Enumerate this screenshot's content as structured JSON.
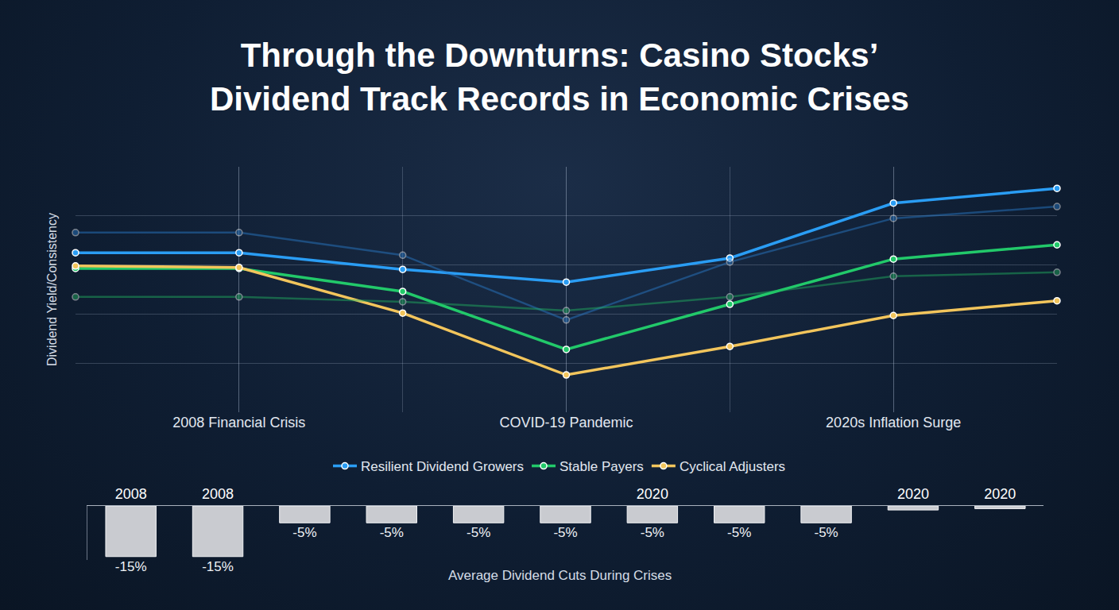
{
  "chart_data": [
    {
      "type": "line",
      "title": "Through the Downturns: Casino Stocks’\nDividend Track Records in Economic Crises",
      "ylabel": "Dividend Yield/Consistency",
      "categories": [
        null,
        "2008 Financial Crisis",
        null,
        "COVID-19 Pandemic",
        null,
        "2020s Inflation Surge",
        null
      ],
      "ylim": [
        0,
        5
      ],
      "yticks": [
        0,
        1,
        2,
        3,
        4,
        5
      ],
      "grid": true,
      "tick_labels": "x",
      "legend": "bottom",
      "marker": "circle",
      "series": [
        {
          "name": "Resilient Dividend Growers",
          "color": "#2a9df4",
          "values": [
            3.25,
            3.25,
            2.91,
            2.65,
            3.14,
            4.26,
            4.56
          ]
        },
        {
          "name": "Stable Payers",
          "color": "#22c96a",
          "values": [
            2.93,
            2.93,
            2.46,
            1.28,
            2.2,
            3.12,
            3.41
          ]
        },
        {
          "name": "Cyclical Adjusters",
          "color": "#f2c55c",
          "values": [
            2.98,
            2.95,
            2.02,
            0.76,
            1.34,
            1.97,
            2.27
          ]
        },
        {
          "name": "Resilient Dividend Growers",
          "color": "#2a7fd0",
          "line_style": "faint",
          "values": [
            3.66,
            3.66,
            3.2,
            1.88,
            3.06,
            3.95,
            4.19
          ]
        },
        {
          "name": "Stable Payers",
          "color": "#22b862",
          "line_style": "faint",
          "values": [
            2.35,
            2.35,
            2.25,
            2.07,
            2.35,
            2.77,
            2.85
          ]
        }
      ]
    },
    {
      "type": "bar",
      "xlabel": "Average Dividend Cuts During Crises",
      "categories": [
        "2008",
        "2008",
        null,
        null,
        null,
        null,
        "2020",
        null,
        null,
        "2020",
        "2020"
      ],
      "values": [
        -15,
        -15,
        -5,
        -5,
        -5,
        -5,
        -5,
        -5,
        -5,
        -1.2,
        -0.8
      ],
      "value_labels": [
        "-15%",
        "-15%",
        "-5%",
        "-5%",
        "-5%",
        "-5%",
        "-5%",
        "-5%",
        "-5%",
        null,
        null
      ],
      "data_labels": true,
      "color": "#c9cbd0",
      "ylim": [
        -16,
        0
      ],
      "tick_labels": "x",
      "grid": false
    }
  ]
}
